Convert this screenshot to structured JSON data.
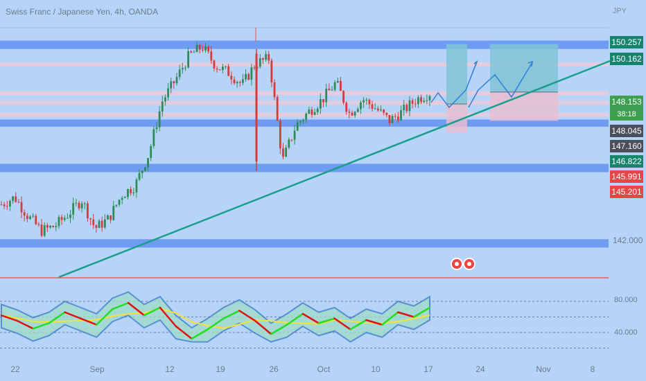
{
  "header": {
    "symbol_title": "Swiss Franc / Japanese Yen, 4h, OANDA",
    "currency": "JPY"
  },
  "price_labels": [
    {
      "text": "150.257",
      "bg": "#16856b"
    },
    {
      "text": "150.162",
      "bg": "#16856b"
    },
    {
      "text": "148.153",
      "bg": "#3d9f4f"
    },
    {
      "text": "38:18",
      "bg": "#3d9f4f"
    },
    {
      "text": "148.045",
      "bg": "#4a4f5a"
    },
    {
      "text": "147.160",
      "bg": "#4a4f5a"
    },
    {
      "text": "146.822",
      "bg": "#16856b"
    },
    {
      "text": "145.991",
      "bg": "#e84646"
    },
    {
      "text": "145.201",
      "bg": "#e84646"
    }
  ],
  "price_axis_plain": "142.000",
  "rsi_axis": [
    "80.000",
    "40.000"
  ],
  "x_axis": [
    "22",
    "Sep",
    "12",
    "19",
    "26",
    "Oct",
    "10",
    "17",
    "24",
    "Nov",
    "8"
  ],
  "colors": {
    "background": "#b6d4f7",
    "zone_band": "#6f9cf3",
    "pink_band": "#f0c9d6",
    "trendline": "#1a9e8c",
    "candle_up": "#2e8b57",
    "candle_down": "#d63a3a",
    "box_target": "#7fc3d6",
    "box_stop": "#e6bdd2",
    "projection": "#2f7fd8",
    "rsi_green": "#22dd22",
    "rsi_red": "#e01010",
    "rsi_ma": "#f3e23a"
  },
  "chart_data": {
    "type": "candlestick",
    "title": "Swiss Franc / Japanese Yen, 4h, OANDA",
    "y_unit": "JPY",
    "y_range": [
      141.0,
      152.0
    ],
    "resistance_support_zones": [
      [
        150.0,
        150.35
      ],
      [
        146.75,
        147.05
      ],
      [
        144.85,
        145.2
      ],
      [
        141.7,
        142.05
      ]
    ],
    "minor_levels": [
      149.35,
      148.15,
      147.75,
      147.25
    ],
    "trendline": {
      "from": [
        "Aug 27",
        141.0
      ],
      "to": [
        "Nov 6",
        150.2
      ]
    },
    "trade_boxes": [
      {
        "entry": 147.7,
        "target": 150.2,
        "stop": 146.5
      },
      {
        "entry": 148.2,
        "target": 150.2,
        "stop": 147.0
      }
    ],
    "price_path_close": [
      143.5,
      143.8,
      143.0,
      142.4,
      142.6,
      143.1,
      143.7,
      142.5,
      142.9,
      143.9,
      144.3,
      145.6,
      147.8,
      148.7,
      149.7,
      150.1,
      149.3,
      149.0,
      148.5,
      149.4,
      149.6,
      145.3,
      146.8,
      147.4,
      147.9,
      148.6,
      147.3,
      147.9,
      147.5,
      147.0,
      147.4,
      147.9,
      148.15
    ],
    "rsi": {
      "levels": [
        80,
        60,
        40,
        20
      ],
      "series": [
        62,
        55,
        45,
        52,
        66,
        58,
        50,
        70,
        78,
        62,
        72,
        48,
        32,
        44,
        58,
        68,
        55,
        38,
        50,
        64,
        52,
        58,
        44,
        56,
        50,
        66,
        60,
        72
      ]
    }
  }
}
